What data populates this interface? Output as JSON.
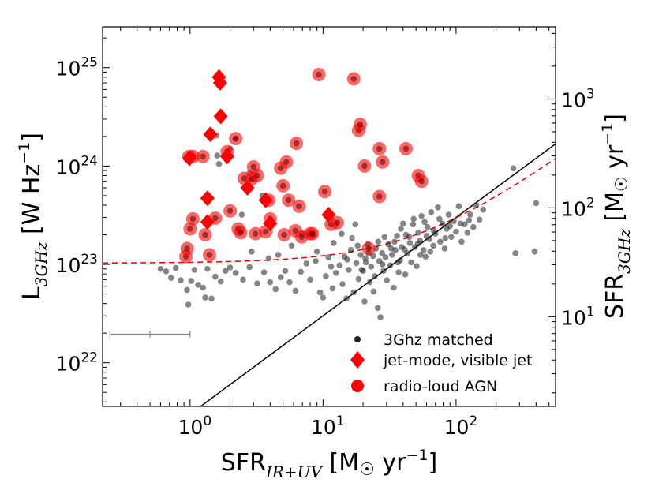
{
  "chart_data": {
    "type": "scatter",
    "xscale": "log",
    "yscale": "log",
    "xlim": [
      0.22,
      560
    ],
    "ylim": [
      3.6e+21,
      2.6e+25
    ],
    "y2lim": [
      1.5,
      4600
    ],
    "x_ticks": [
      {
        "value": 1,
        "mantissa": "10",
        "exp": "0"
      },
      {
        "value": 10,
        "mantissa": "10",
        "exp": "1"
      },
      {
        "value": 100,
        "mantissa": "10",
        "exp": "2"
      }
    ],
    "y_ticks": [
      {
        "value": 1e+22,
        "mantissa": "10",
        "exp": "22"
      },
      {
        "value": 1e+23,
        "mantissa": "10",
        "exp": "23"
      },
      {
        "value": 1e+24,
        "mantissa": "10",
        "exp": "24"
      },
      {
        "value": 1e+25,
        "mantissa": "10",
        "exp": "25"
      }
    ],
    "y2_ticks": [
      {
        "value": 10,
        "mantissa": "10",
        "exp": "1"
      },
      {
        "value": 100,
        "mantissa": "10",
        "exp": "2"
      },
      {
        "value": 1000,
        "mantissa": "10",
        "exp": "3"
      }
    ],
    "xlabel": {
      "main": "SFR",
      "sub": "IR+UV",
      "unit_open": " [M",
      "sun": "☉",
      "unit_mid": " yr",
      "exp": "−1",
      "unit_close": "]"
    },
    "ylabel": {
      "main": "L",
      "sub": "3GHz",
      "unit_open": " [W Hz",
      "exp": "−1",
      "unit_close": "]"
    },
    "y2label": {
      "main": "SFR",
      "sub": "3GHz",
      "unit_open": " [M",
      "sun": "☉",
      "unit_mid": " yr",
      "exp": "−1",
      "unit_close": "]"
    },
    "legend": {
      "placement": "lower-right",
      "entries": [
        {
          "label": "3Ghz matched",
          "marker": "dot",
          "color": "#202020"
        },
        {
          "label": "jet-mode, visible jet",
          "marker": "diamond",
          "color": "#ff0000"
        },
        {
          "label": "radio-loud AGN",
          "marker": "circle",
          "color": "#ff0000"
        }
      ]
    },
    "lines": {
      "sfr_relation": {
        "color": "#000000",
        "style": "solid",
        "x_range": [
          1.15,
          560
        ],
        "y_at_1": 3e+21,
        "slope": 1.0
      },
      "radio_loud_threshold": {
        "color": "#dd0000",
        "style": "dashed",
        "x_range": [
          0.22,
          560
        ],
        "y0": 1.03e+23,
        "k": 1.95e+21
      }
    },
    "error_bar": {
      "x_low": 0.25,
      "x_center": 0.5,
      "x_high": 1.0,
      "y": 1.95e+22,
      "color": "#888888"
    },
    "series": [
      {
        "name": "3Ghz matched",
        "color": "#202020",
        "points": [
          [
            0.6,
            9e+22
          ],
          [
            0.66,
            8.5e+22
          ],
          [
            0.72,
            7.3e+22
          ],
          [
            0.78,
            9.2e+22
          ],
          [
            0.85,
            6.9e+22
          ],
          [
            0.95,
            5.5e+22
          ],
          [
            0.97,
            3.9e+22
          ],
          [
            1.02,
            6.8e+22
          ],
          [
            1.08,
            8.8e+22
          ],
          [
            1.15,
            6.2e+22
          ],
          [
            1.25,
            5.8e+22
          ],
          [
            1.3,
            4.6e+22
          ],
          [
            1.35,
            9e+22
          ],
          [
            1.45,
            4.5e+22
          ],
          [
            1.55,
            7.5e+22
          ],
          [
            1.7,
            6.7e+22
          ],
          [
            1.85,
            8.6e+22
          ],
          [
            2.0,
            9.3e+22
          ],
          [
            2.2,
            8.2e+22
          ],
          [
            2.5,
            7e+22
          ],
          [
            2.8,
            9.4e+22
          ],
          [
            3.2,
            6.4e+22
          ],
          [
            3.6,
            8.3e+22
          ],
          [
            4.0,
            6.6e+22
          ],
          [
            4.4,
            5.6e+22
          ],
          [
            4.8,
            7.4e+22
          ],
          [
            5.2,
            8.6e+22
          ],
          [
            5.6,
            6.6e+22
          ],
          [
            6.2,
            5.4e+22
          ],
          [
            6.8,
            8.4e+22
          ],
          [
            7.5,
            1.02e+23
          ],
          [
            8.0,
            7e+22
          ],
          [
            8.8,
            1.08e+23
          ],
          [
            9.5,
            5.2e+22
          ],
          [
            10.0,
            4.6e+22
          ],
          [
            10.5,
            7.6e+22
          ],
          [
            11.0,
            1.18e+23
          ],
          [
            11.8,
            5.7e+22
          ],
          [
            12.5,
            8.2e+22
          ],
          [
            13.3,
            9.8e+22
          ],
          [
            14.0,
            6.3e+22
          ],
          [
            14.5,
            1.2e+23
          ],
          [
            15.0,
            4.5e+22
          ],
          [
            15.6,
            8.8e+22
          ],
          [
            16.2,
            1.4e+23
          ],
          [
            17.0,
            5.2e+22
          ],
          [
            17.5,
            2.55e+23
          ],
          [
            17.8,
            1.03e+23
          ],
          [
            18.5,
            7.1e+22
          ],
          [
            19.2,
            1.25e+23
          ],
          [
            20.0,
            8.6e+22
          ],
          [
            20.5,
            4.2e+22
          ],
          [
            21.0,
            1.05e+23
          ],
          [
            21.8,
            1.6e+23
          ],
          [
            22.5,
            6.6e+22
          ],
          [
            23.0,
            9.5e+22
          ],
          [
            23.8,
            1.22e+23
          ],
          [
            24.5,
            7.6e+22
          ],
          [
            25.0,
            1.45e+23
          ],
          [
            25.8,
            3.6e+22
          ],
          [
            26.5,
            1.08e+23
          ],
          [
            27.0,
            2.9e+22
          ],
          [
            27.8,
            1.3e+23
          ],
          [
            28.5,
            8.6e+22
          ],
          [
            29.5,
            1.18e+23
          ],
          [
            30.2,
            6.9e+22
          ],
          [
            31.0,
            1.6e+23
          ],
          [
            32.0,
            9.8e+22
          ],
          [
            33.0,
            1.25e+23
          ],
          [
            34.0,
            5.8e+22
          ],
          [
            35.0,
            1.4e+23
          ],
          [
            36.0,
            1.95e+23
          ],
          [
            37.0,
            8.3e+22
          ],
          [
            38.0,
            1.1e+23
          ],
          [
            39.0,
            1.5e+23
          ],
          [
            40.0,
            2.6e+23
          ],
          [
            41.5,
            7.9e+22
          ],
          [
            43.0,
            1.3e+23
          ],
          [
            44.5,
            1.9e+23
          ],
          [
            46.0,
            1.05e+23
          ],
          [
            47.5,
            2.55e+23
          ],
          [
            49.0,
            1.5e+23
          ],
          [
            50.5,
            9.6e+22
          ],
          [
            52.0,
            2.1e+23
          ],
          [
            53.5,
            1.75e+23
          ],
          [
            55.0,
            3.1e+23
          ],
          [
            57.0,
            1.4e+23
          ],
          [
            59.0,
            1.2e+23
          ],
          [
            61.0,
            2.4e+23
          ],
          [
            63.0,
            1.8e+23
          ],
          [
            65.0,
            3.4e+23
          ],
          [
            67.5,
            1.55e+23
          ],
          [
            70.0,
            2.05e+23
          ],
          [
            73.0,
            3.8e+23
          ],
          [
            76.0,
            1.7e+23
          ],
          [
            79.0,
            2.6e+23
          ],
          [
            82.0,
            1.45e+23
          ],
          [
            85.0,
            2.3e+23
          ],
          [
            88.0,
            3.2e+23
          ],
          [
            92.0,
            1.9e+23
          ],
          [
            96.0,
            2.75e+23
          ],
          [
            100.0,
            2.15e+23
          ],
          [
            105.0,
            3.9e+23
          ],
          [
            110.0,
            1.7e+23
          ],
          [
            116.0,
            2.55e+23
          ],
          [
            122.0,
            2.1e+23
          ],
          [
            128.0,
            3.2e+23
          ],
          [
            135.0,
            2.4e+23
          ],
          [
            142.0,
            4e+23
          ],
          [
            150.0,
            2.85e+23
          ],
          [
            160.0,
            3.6e+23
          ],
          [
            270.0,
            9.5e+23
          ],
          [
            280.0,
            1.3e+23
          ],
          [
            390.0,
            1.35e+23
          ],
          [
            400.0,
            4.2e+23
          ],
          [
            7.0,
            2.05e+23
          ],
          [
            5.8,
            1.55e+23
          ],
          [
            4.6,
            1.25e+23
          ],
          [
            3.9,
            1.15e+23
          ],
          [
            2.9,
            1.35e+23
          ],
          [
            9.0,
            1.35e+23
          ],
          [
            12.0,
            1.65e+23
          ],
          [
            13.8,
            2.05e+23
          ],
          [
            16.5,
            1.85e+23
          ],
          [
            18.2,
            1.55e+23
          ],
          [
            22.0,
            1.3e+23
          ],
          [
            26.0,
            1.7e+23
          ],
          [
            29.0,
            1.9e+23
          ],
          [
            34.5,
            1.7e+23
          ],
          [
            38.5,
            2.3e+23
          ],
          [
            42.0,
            2e+23
          ],
          [
            45.0,
            1.65e+23
          ],
          [
            48.0,
            2.9e+23
          ],
          [
            54.0,
            1.25e+23
          ],
          [
            60.0,
            1.95e+23
          ],
          [
            68.0,
            2.2e+23
          ],
          [
            75.0,
            2.9e+23
          ],
          [
            83.0,
            1.85e+23
          ],
          [
            90.0,
            2.45e+23
          ],
          [
            108.0,
            2.6e+23
          ],
          [
            125.0,
            2.8e+23
          ],
          [
            19.5,
            8.8e+22
          ],
          [
            24.0,
            5.3e+22
          ],
          [
            11.5,
            9.5e+22
          ],
          [
            15.2,
            1.12e+23
          ],
          [
            20.8,
            1.15e+23
          ],
          [
            28.0,
            1e+23
          ],
          [
            32.5,
            1.45e+23
          ],
          [
            36.5,
            1.05e+23
          ],
          [
            41.0,
            1.42e+23
          ],
          [
            51.5,
            1.62e+23
          ],
          [
            58.0,
            2.7e+23
          ],
          [
            64.0,
            1.35e+23
          ],
          [
            1.6,
            1.28e+24
          ],
          [
            1.65,
            1.05e+24
          ],
          [
            1.58,
            2.05e+24
          ],
          [
            2.0,
            1.5e+24
          ],
          [
            2.2,
            1.9e+24
          ],
          [
            2.8,
            8.5e+23
          ],
          [
            3.0,
            7.4e+23
          ],
          [
            3.5,
            5e+23
          ],
          [
            2.45,
            3.2e+23
          ],
          [
            8.5,
            2e+23
          ]
        ]
      },
      {
        "name": "radio-loud AGN",
        "color": "#ff0000",
        "points": [
          [
            0.93,
            1.2e+23
          ],
          [
            0.95,
            1.45e+23
          ],
          [
            0.98,
            1.25e+24
          ],
          [
            1.0,
            2.3e+23
          ],
          [
            1.05,
            2.9e+23
          ],
          [
            1.05,
            1.25e+24
          ],
          [
            1.25,
            1.25e+24
          ],
          [
            1.3,
            2e+23
          ],
          [
            1.4,
            1.25e+23
          ],
          [
            1.55,
            2.95e+23
          ],
          [
            1.9,
            1.4e+24
          ],
          [
            2.0,
            3.5e+23
          ],
          [
            2.2,
            1.9e+24
          ],
          [
            2.3,
            2.3e+23
          ],
          [
            2.4,
            2.1e+23
          ],
          [
            2.55,
            7.5e+23
          ],
          [
            2.9,
            7.4e+23
          ],
          [
            3.0,
            9.8e+23
          ],
          [
            3.1,
            2.05e+23
          ],
          [
            3.2,
            8e+23
          ],
          [
            3.7,
            2.15e+23
          ],
          [
            3.9,
            4.5e+23
          ],
          [
            4.0,
            2.9e+23
          ],
          [
            4.8,
            9.5e+23
          ],
          [
            5.0,
            6.3e+23
          ],
          [
            5.1,
            2e+23
          ],
          [
            5.3,
            1.1e+24
          ],
          [
            5.5,
            4.5e+23
          ],
          [
            6.2,
            2.2e+23
          ],
          [
            6.3,
            1.7e+24
          ],
          [
            6.6,
            3.9e+23
          ],
          [
            6.9,
            1.9e+23
          ],
          [
            8.0,
            2.05e+23
          ],
          [
            8.3,
            2.05e+23
          ],
          [
            9.3,
            8.5e+24
          ],
          [
            10.3,
            5.5e+23
          ],
          [
            11.5,
            2.55e+23
          ],
          [
            12.8,
            2.65e+23
          ],
          [
            17.0,
            7.7e+24
          ],
          [
            18.5,
            2.3e+24
          ],
          [
            19.0,
            2.65e+24
          ],
          [
            20.5,
            1e+24
          ],
          [
            22.0,
            1.45e+23
          ],
          [
            26.5,
            1.5e+24
          ],
          [
            26.5,
            4.9e+23
          ],
          [
            28.0,
            1.1e+24
          ],
          [
            42.0,
            1.5e+24
          ],
          [
            52.0,
            8e+23
          ],
          [
            55.0,
            7e+23
          ]
        ]
      },
      {
        "name": "jet-mode, visible jet",
        "color": "#ff0000",
        "points": [
          [
            0.99,
            1.2e+24
          ],
          [
            1.35,
            4.7e+23
          ],
          [
            1.35,
            2.7e+23
          ],
          [
            1.42,
            2.1e+24
          ],
          [
            1.65,
            8e+24
          ],
          [
            1.68,
            7e+24
          ],
          [
            1.7,
            3.2e+24
          ],
          [
            1.9,
            1.25e+24
          ],
          [
            2.7,
            6e+23
          ],
          [
            3.7,
            4.5e+23
          ],
          [
            4.0,
            2.6e+23
          ],
          [
            11.0,
            3.2e+23
          ]
        ]
      }
    ]
  }
}
